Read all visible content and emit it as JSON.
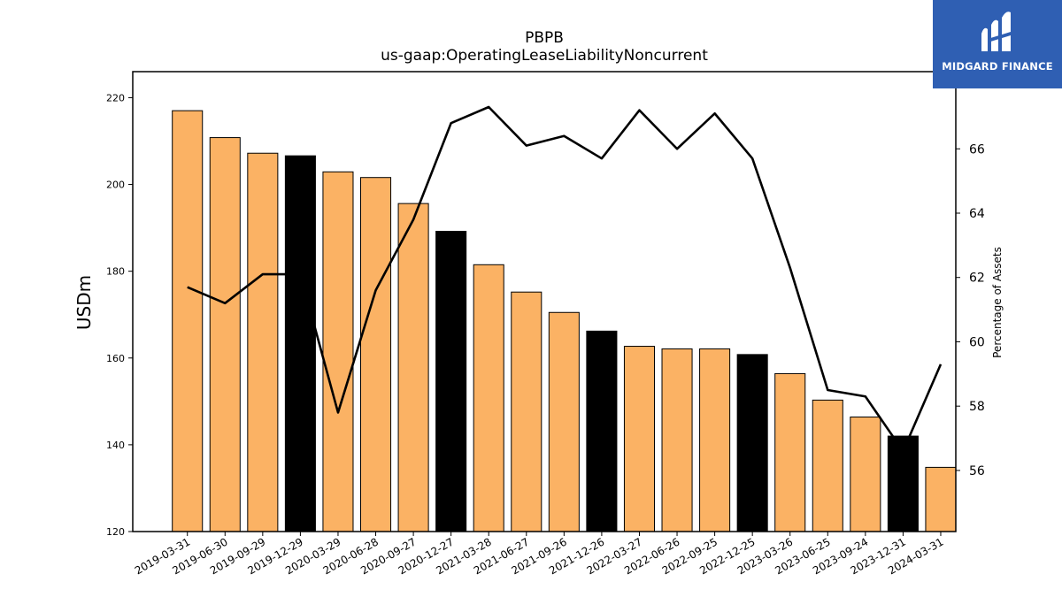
{
  "chart_data": {
    "type": "bar",
    "title": "PBPB",
    "subtitle": "us-gaap:OperatingLeaseLiabilityNoncurrent",
    "ylabel": "USDm",
    "y2label": "Percentage of Assets",
    "ylim": [
      120,
      226
    ],
    "y2lim": [
      54.1,
      68.4
    ],
    "yticks": [
      120,
      140,
      160,
      180,
      200,
      220
    ],
    "y2ticks": [
      56,
      58,
      60,
      62,
      64,
      66
    ],
    "categories": [
      "2019-03-31",
      "2019-06-30",
      "2019-09-29",
      "2019-12-29",
      "2020-03-29",
      "2020-06-28",
      "2020-09-27",
      "2020-12-27",
      "2021-03-28",
      "2021-06-27",
      "2021-09-26",
      "2021-12-26",
      "2022-03-27",
      "2022-06-26",
      "2022-09-25",
      "2022-12-25",
      "2023-03-26",
      "2023-06-25",
      "2023-09-24",
      "2023-12-31",
      "2024-03-31"
    ],
    "series": [
      {
        "type": "bar",
        "values": [
          217.0,
          210.8,
          207.2,
          206.6,
          202.9,
          201.6,
          195.6,
          189.2,
          181.5,
          175.2,
          170.5,
          166.2,
          162.7,
          162.1,
          162.1,
          160.8,
          156.4,
          150.3,
          146.4,
          142.0,
          134.8
        ],
        "colors": [
          "#fbb264",
          "#fbb264",
          "#fbb264",
          "#000000",
          "#fbb264",
          "#fbb264",
          "#fbb264",
          "#000000",
          "#fbb264",
          "#fbb264",
          "#fbb264",
          "#000000",
          "#fbb264",
          "#fbb264",
          "#fbb264",
          "#000000",
          "#fbb264",
          "#fbb264",
          "#fbb264",
          "#000000",
          "#fbb264"
        ]
      },
      {
        "type": "line",
        "axis": "right",
        "color": "#000000",
        "values": [
          61.7,
          61.2,
          62.1,
          62.1,
          57.8,
          61.6,
          63.8,
          66.8,
          67.3,
          66.1,
          66.4,
          65.7,
          67.2,
          66.0,
          67.1,
          65.7,
          62.3,
          58.5,
          58.3,
          56.6,
          59.3
        ]
      }
    ]
  },
  "logo": {
    "text": "MIDGARD FINANCE"
  }
}
